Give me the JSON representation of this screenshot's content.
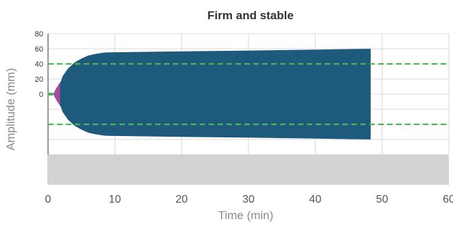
{
  "chart_data": {
    "type": "area",
    "title": "Firm and stable",
    "xlabel": "Time (min)",
    "ylabel": "Amplitude (mm)",
    "xlim": [
      0,
      60
    ],
    "xticks": [
      0,
      10,
      20,
      30,
      40,
      50,
      60
    ],
    "ylim": [
      0,
      80
    ],
    "yticks": [
      0,
      20,
      40,
      60,
      80
    ],
    "grid": true,
    "reference_lines": {
      "values": [
        40
      ],
      "color": "#4cb35a",
      "style": "dashed"
    },
    "series": [
      {
        "role": "baseline",
        "color": "#4cb35a",
        "x": [
          0,
          0.8
        ],
        "y": [
          0,
          0
        ]
      },
      {
        "role": "initial-clot",
        "color": "#a64d9a",
        "x": [
          0.8,
          1.0,
          1.3,
          1.6,
          2.0
        ],
        "y": [
          0,
          4,
          9,
          13,
          18
        ]
      },
      {
        "role": "clot-amplitude",
        "color": "#1e5a7c",
        "x": [
          1.8,
          2.2,
          3.0,
          4.0,
          5.0,
          6.0,
          7.0,
          8.0,
          8.5,
          9.0,
          20,
          30,
          40,
          48.3
        ],
        "y": [
          14,
          24,
          34,
          42,
          47,
          51,
          53,
          54.5,
          55,
          55.2,
          56.5,
          57.6,
          58.8,
          60
        ]
      }
    ]
  }
}
